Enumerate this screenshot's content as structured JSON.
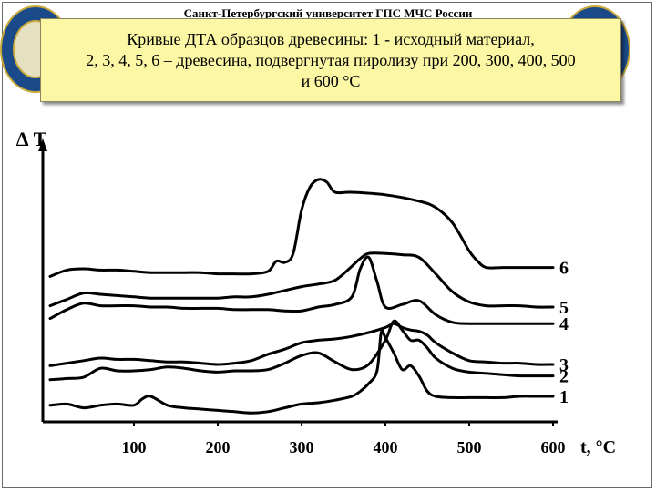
{
  "header": {
    "university": "Санкт-Петербургский университет ГПС МЧС России",
    "title_lines": [
      "Кривые ДТА образцов древесины: 1 - исходный материал,",
      "2, 3, 4, 5, 6 – древесина, подвергнутая пиролизу при 200, 300, 400, 500",
      "и 600 °С"
    ]
  },
  "chart_data": {
    "type": "line",
    "ylabel": "∆ T",
    "xlabel": "t, °C",
    "x_ticks": [
      "100",
      "200",
      "300",
      "400",
      "500",
      "600"
    ],
    "xlim": [
      0,
      600
    ],
    "ylim": [
      0,
      100
    ],
    "grid": false,
    "legend": "curve labels at right end",
    "series": [
      {
        "name": "1",
        "x": [
          0,
          20,
          40,
          60,
          80,
          100,
          110,
          120,
          140,
          160,
          180,
          200,
          220,
          240,
          260,
          280,
          300,
          320,
          340,
          360,
          370,
          380,
          390,
          395,
          400,
          410,
          420,
          430,
          440,
          450,
          460,
          480,
          500,
          520,
          540,
          560,
          580,
          600
        ],
        "y": [
          6.5,
          7.0,
          5.5,
          6.5,
          7.0,
          6.5,
          9.0,
          10.0,
          6.5,
          5.5,
          5.0,
          4.5,
          4.0,
          3.5,
          4.0,
          5.5,
          7.0,
          7.5,
          8.5,
          10.0,
          12.0,
          15.0,
          20.0,
          35.0,
          33.0,
          27.0,
          20.5,
          22.0,
          18.0,
          12.0,
          10.0,
          9.5,
          9.5,
          9.5,
          9.5,
          10.0,
          10.0,
          10.0
        ]
      },
      {
        "name": "2",
        "x": [
          0,
          20,
          40,
          60,
          80,
          100,
          120,
          140,
          160,
          180,
          200,
          220,
          240,
          260,
          280,
          300,
          320,
          340,
          360,
          380,
          400,
          410,
          420,
          430,
          440,
          450,
          460,
          480,
          500,
          520,
          540,
          560,
          580,
          600
        ],
        "y": [
          16.5,
          17.0,
          17.5,
          21.0,
          20.0,
          20.0,
          20.5,
          21.5,
          21.0,
          20.0,
          19.5,
          20.0,
          20.0,
          20.5,
          23.0,
          26.0,
          27.0,
          23.5,
          20.5,
          22.5,
          32.0,
          39.5,
          36.0,
          32.0,
          32.0,
          29.0,
          25.0,
          21.0,
          19.5,
          19.0,
          18.5,
          18.0,
          18.0,
          18.0
        ]
      },
      {
        "name": "3",
        "x": [
          0,
          20,
          40,
          60,
          80,
          100,
          120,
          140,
          160,
          180,
          200,
          220,
          240,
          260,
          280,
          300,
          320,
          340,
          360,
          380,
          400,
          410,
          420,
          430,
          440,
          450,
          460,
          480,
          500,
          520,
          540,
          560,
          580,
          600
        ],
        "y": [
          22.0,
          23.0,
          24.0,
          25.0,
          24.5,
          24.5,
          24.0,
          23.5,
          23.5,
          23.0,
          22.5,
          23.0,
          24.0,
          26.5,
          28.5,
          31.0,
          32.0,
          32.5,
          33.5,
          35.0,
          37.0,
          38.5,
          37.0,
          36.0,
          35.5,
          34.0,
          31.0,
          27.0,
          24.0,
          23.5,
          23.0,
          23.0,
          22.5,
          22.5
        ]
      },
      {
        "name": "4",
        "x": [
          0,
          20,
          40,
          60,
          80,
          100,
          120,
          140,
          160,
          180,
          200,
          220,
          240,
          260,
          280,
          300,
          320,
          340,
          360,
          370,
          380,
          390,
          400,
          420,
          440,
          460,
          480,
          500,
          520,
          540,
          560,
          580,
          600
        ],
        "y": [
          40.5,
          44.0,
          46.5,
          45.5,
          45.5,
          45.5,
          45.0,
          45.0,
          44.5,
          44.5,
          44.5,
          44.0,
          44.0,
          44.0,
          43.5,
          43.5,
          45.0,
          46.0,
          49.0,
          60.0,
          64.5,
          55.0,
          45.0,
          46.0,
          47.5,
          42.0,
          39.0,
          38.5,
          38.5,
          38.5,
          38.5,
          38.5,
          38.5
        ]
      },
      {
        "name": "5",
        "x": [
          0,
          20,
          40,
          60,
          80,
          100,
          120,
          140,
          160,
          180,
          200,
          220,
          240,
          260,
          280,
          300,
          320,
          340,
          360,
          370,
          380,
          400,
          420,
          440,
          460,
          480,
          500,
          520,
          540,
          560,
          580,
          600
        ],
        "y": [
          45.5,
          48.0,
          50.5,
          50.0,
          49.5,
          49.0,
          48.5,
          48.5,
          48.5,
          48.5,
          48.5,
          49.0,
          49.0,
          50.0,
          51.5,
          53.0,
          54.0,
          55.5,
          61.0,
          64.0,
          66.0,
          66.0,
          65.5,
          64.5,
          58.0,
          51.0,
          47.0,
          45.5,
          45.5,
          45.5,
          45.0,
          45.0
        ]
      },
      {
        "name": "6",
        "x": [
          0,
          20,
          40,
          60,
          80,
          100,
          120,
          140,
          160,
          180,
          200,
          220,
          240,
          260,
          270,
          280,
          290,
          300,
          310,
          320,
          330,
          340,
          360,
          400,
          440,
          460,
          480,
          500,
          510,
          520,
          540,
          560,
          580,
          600
        ],
        "y": [
          57.0,
          59.5,
          60.0,
          59.5,
          59.5,
          59.0,
          58.5,
          58.5,
          58.5,
          58.5,
          58.0,
          58.0,
          58.0,
          59.0,
          63.0,
          62.5,
          66.0,
          83.0,
          92.0,
          95.0,
          94.0,
          90.0,
          90.0,
          89.0,
          86.5,
          84.0,
          78.0,
          67.0,
          63.0,
          60.5,
          60.5,
          60.5,
          60.5,
          60.5
        ]
      }
    ]
  }
}
